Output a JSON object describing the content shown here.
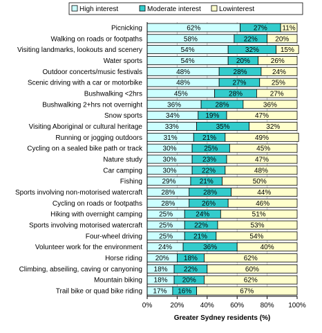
{
  "chart_data": {
    "type": "bar",
    "orientation": "horizontal",
    "stacked": true,
    "xlabel": "Greater Sydney residents (%)",
    "ylabel": "",
    "xlim": [
      0,
      100
    ],
    "x_ticks": [
      "0%",
      "20%",
      "40%",
      "60%",
      "80%",
      "100%"
    ],
    "legend_position": "top",
    "categories": [
      "Picnicking",
      "Walking on roads or footpaths",
      "Visiting landmarks, lookouts and scenery",
      "Water sports",
      "Outdoor concerts/music festivals",
      "Scenic driving with a car or motorbike",
      "Bushwalking <2hrs",
      "Bushwalking 2+hrs not overnight",
      "Snow sports",
      "Visiting Aboriginal or cultural heritage",
      "Running or jogging outdoors",
      "Cycling on a sealed bike path or track",
      "Nature study",
      "Car camping",
      "Fishing",
      "Sports involving non-motorised watercraft",
      "Cycling on roads or footpaths",
      "Hiking with overnight camping",
      "Sports involving motorised watercraft",
      "Four-wheel driving",
      "Volunteer work for the environment",
      "Horse riding",
      "Climbing, abseiling, caving or canyoning",
      "Mountain biking",
      "Trail bike or quad bike riding"
    ],
    "series": [
      {
        "name": "High interest",
        "color": "#ccffff",
        "values": [
          62,
          58,
          54,
          54,
          48,
          48,
          45,
          36,
          34,
          33,
          31,
          30,
          30,
          30,
          29,
          28,
          28,
          25,
          25,
          25,
          24,
          20,
          18,
          18,
          17
        ]
      },
      {
        "name": "Moderate interest",
        "color": "#33cccc",
        "values": [
          27,
          22,
          32,
          20,
          28,
          27,
          28,
          28,
          19,
          35,
          21,
          25,
          23,
          22,
          21,
          28,
          26,
          24,
          22,
          21,
          36,
          18,
          22,
          20,
          16
        ]
      },
      {
        "name": "Lowinterest",
        "color": "#ffffcc",
        "values": [
          11,
          20,
          15,
          26,
          24,
          25,
          27,
          36,
          47,
          32,
          49,
          45,
          47,
          48,
          50,
          44,
          46,
          51,
          53,
          54,
          40,
          62,
          60,
          62,
          67
        ]
      }
    ]
  }
}
